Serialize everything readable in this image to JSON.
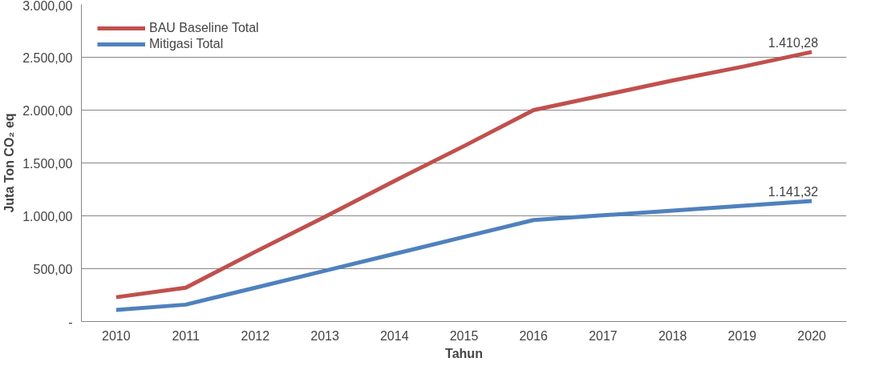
{
  "chart_data": {
    "type": "line",
    "xlabel": "Tahun",
    "ylabel": "Juta Ton CO₂ eq",
    "categories": [
      "2010",
      "2011",
      "2012",
      "2013",
      "2014",
      "2015",
      "2016",
      "2017",
      "2018",
      "2019",
      "2020"
    ],
    "series": [
      {
        "name": "BAU Baseline Total",
        "color": "#c0504d",
        "values": [
          230,
          320,
          660,
          990,
          1330,
          1660,
          2000,
          2140,
          2280,
          2410,
          2550
        ]
      },
      {
        "name": "Mitigasi Total",
        "color": "#4f81bd",
        "values": [
          110,
          160,
          320,
          480,
          640,
          800,
          960,
          1005,
          1050,
          1095,
          1140
        ]
      }
    ],
    "ylim": [
      0,
      3000
    ],
    "yticks": [
      {
        "value": 0,
        "label": "-"
      },
      {
        "value": 500,
        "label": "500,00"
      },
      {
        "value": 1000,
        "label": "1.000,00"
      },
      {
        "value": 1500,
        "label": "1.500,00"
      },
      {
        "value": 2000,
        "label": "2.000,00"
      },
      {
        "value": 2500,
        "label": "2.500,00"
      },
      {
        "value": 3000,
        "label": "3.000,00"
      }
    ],
    "annotations": [
      {
        "text": "1.410,28",
        "x": "2020",
        "y": 2550
      },
      {
        "text": "1.141,32",
        "x": "2020",
        "y": 1140
      }
    ],
    "grid": "y",
    "legend": "top left",
    "marker": "none",
    "line_style": "solid"
  }
}
